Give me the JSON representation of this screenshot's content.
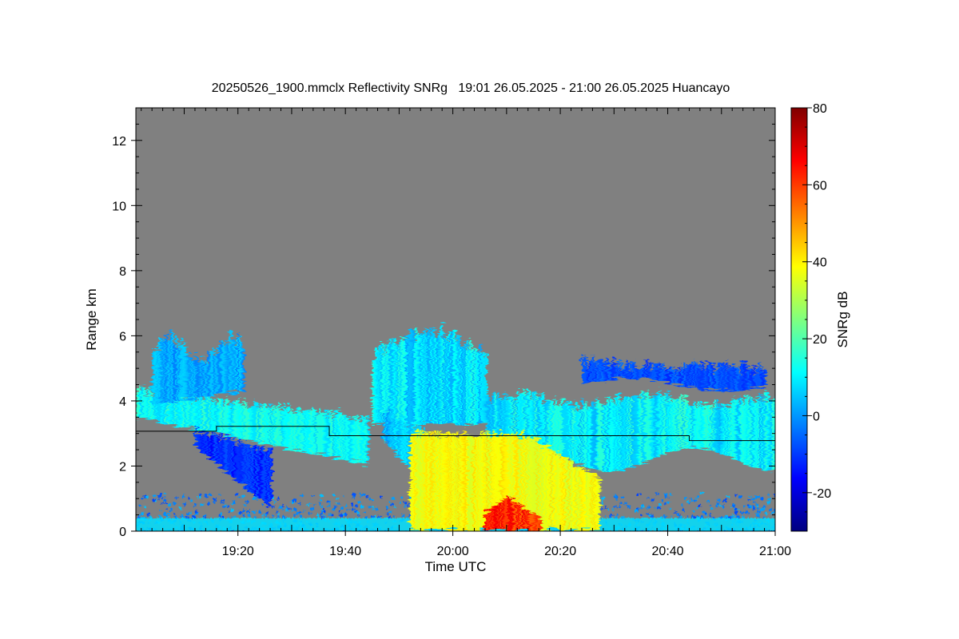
{
  "chart_data": {
    "type": "heatmap",
    "title": "20250526_1900.mmclx Reflectivity SNRg   19:01 26.05.2025 - 21:00 26.05.2025 Huancayo",
    "xlabel": "Time UTC",
    "ylabel": "Range km",
    "x_ticks": [
      {
        "label": "19:20",
        "minutes": 20
      },
      {
        "label": "19:40",
        "minutes": 40
      },
      {
        "label": "20:00",
        "minutes": 60
      },
      {
        "label": "20:20",
        "minutes": 80
      },
      {
        "label": "20:40",
        "minutes": 100
      },
      {
        "label": "21:00",
        "minutes": 120
      }
    ],
    "xlim_minutes": [
      1,
      120
    ],
    "y_ticks": [
      0,
      2,
      4,
      6,
      8,
      10,
      12
    ],
    "ylim": [
      0,
      13
    ],
    "colorbar": {
      "label": "SNRg dB",
      "range": [
        -30,
        80
      ],
      "ticks": [
        -20,
        0,
        20,
        40,
        60,
        80
      ],
      "colormap": "jet"
    },
    "background_color": "#808080",
    "reference_line_km": [
      {
        "from_minutes": 1,
        "to_minutes": 16,
        "range_km": 3.07
      },
      {
        "from_minutes": 16,
        "to_minutes": 37,
        "range_km": 3.22
      },
      {
        "from_minutes": 37,
        "to_minutes": 104,
        "range_km": 2.93
      },
      {
        "from_minutes": 104,
        "to_minutes": 120,
        "range_km": 2.78
      }
    ],
    "features": [
      {
        "name": "cloud-layer-west",
        "t": [
          1,
          44
        ],
        "base_km": 2.2,
        "top_km": 4.5,
        "snr_db": 12
      },
      {
        "name": "cloud-plume-west",
        "t": [
          4,
          21
        ],
        "base_km": 3.8,
        "top_km": 6.2,
        "snr_db": 2
      },
      {
        "name": "cloud-tower-center",
        "t": [
          45,
          66
        ],
        "base_km": 3.5,
        "top_km": 6.3,
        "snr_db": 8
      },
      {
        "name": "cloud-layer-east",
        "t": [
          66,
          120
        ],
        "base_km": 2.0,
        "top_km": 4.4,
        "snr_db": 10
      },
      {
        "name": "cloud-upper-east",
        "t": [
          84,
          118
        ],
        "base_km": 4.3,
        "top_km": 5.5,
        "snr_db": -8
      },
      {
        "name": "precipitation-shaft",
        "t": [
          52,
          87
        ],
        "base_km": 0.0,
        "top_km": 3.0,
        "snr_db": 38
      },
      {
        "name": "precipitation-core",
        "t": [
          66,
          76
        ],
        "base_km": 0.0,
        "top_km": 1.0,
        "snr_db": 62
      },
      {
        "name": "surface-clutter",
        "t": [
          1,
          120
        ],
        "base_km": 0.0,
        "top_km": 1.2,
        "snr_db": -5
      }
    ]
  }
}
